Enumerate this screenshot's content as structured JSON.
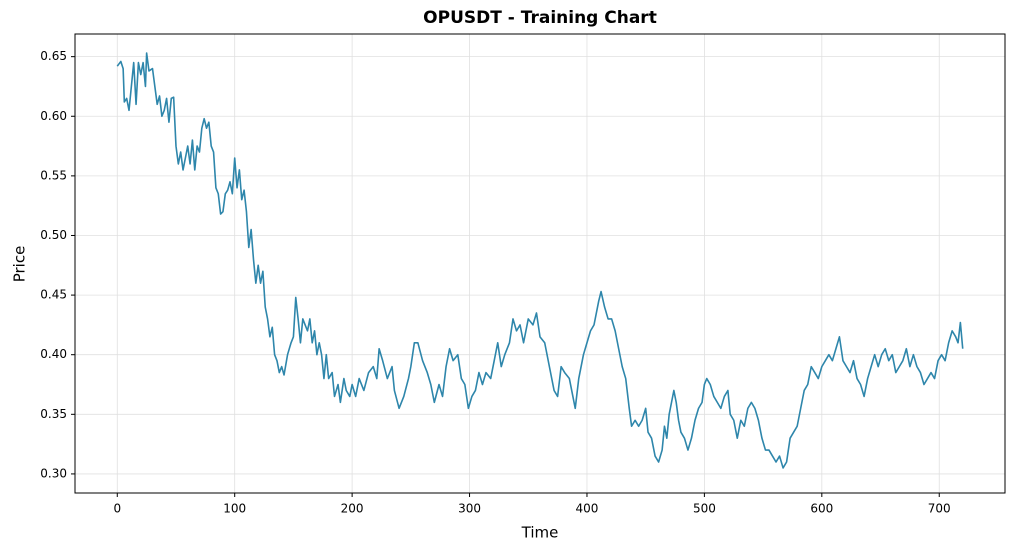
{
  "chart_data": {
    "type": "line",
    "title": "OPUSDT - Training Chart",
    "x_label": "Time",
    "y_label": "Price",
    "color": "#2e86ab",
    "grid": true,
    "xlim": [
      -36,
      756
    ],
    "ylim": [
      0.284,
      0.669
    ],
    "xticks": [
      0,
      100,
      200,
      300,
      400,
      500,
      600,
      700
    ],
    "yticks": [
      {
        "value": 0.3,
        "label": "0.30"
      },
      0.35,
      {
        "value": 0.4,
        "label": "0.40"
      },
      0.45,
      {
        "value": 0.5,
        "label": "0.50"
      },
      0.55,
      {
        "value": 0.6,
        "label": "0.60"
      },
      0.65
    ],
    "x": [
      0,
      3,
      5,
      6,
      8,
      10,
      12,
      14,
      16,
      18,
      20,
      22,
      24,
      25,
      27,
      30,
      32,
      34,
      36,
      38,
      40,
      42,
      44,
      46,
      48,
      50,
      52,
      54,
      56,
      58,
      60,
      62,
      64,
      66,
      68,
      70,
      72,
      74,
      76,
      78,
      80,
      82,
      84,
      86,
      88,
      90,
      92,
      94,
      96,
      98,
      100,
      102,
      104,
      106,
      108,
      110,
      112,
      114,
      116,
      118,
      120,
      122,
      124,
      126,
      128,
      130,
      132,
      134,
      136,
      138,
      140,
      142,
      145,
      148,
      150,
      152,
      154,
      156,
      158,
      160,
      162,
      164,
      166,
      168,
      170,
      172,
      174,
      176,
      178,
      180,
      183,
      185,
      188,
      190,
      193,
      195,
      198,
      200,
      203,
      206,
      210,
      214,
      218,
      221,
      223,
      226,
      230,
      234,
      236,
      240,
      244,
      248,
      250,
      253,
      256,
      260,
      264,
      267,
      270,
      274,
      277,
      280,
      283,
      286,
      290,
      293,
      296,
      299,
      302,
      305,
      308,
      311,
      314,
      318,
      321,
      324,
      327,
      330,
      334,
      337,
      340,
      343,
      346,
      350,
      354,
      357,
      360,
      364,
      368,
      372,
      375,
      378,
      381,
      385,
      388,
      390,
      393,
      397,
      400,
      403,
      406,
      410,
      412,
      415,
      418,
      421,
      424,
      427,
      430,
      433,
      436,
      438,
      441,
      444,
      447,
      450,
      452,
      455,
      458,
      461,
      464,
      466,
      468,
      470,
      472,
      474,
      476,
      478,
      480,
      483,
      486,
      489,
      492,
      495,
      498,
      500,
      502,
      505,
      508,
      511,
      514,
      517,
      520,
      522,
      525,
      528,
      531,
      534,
      537,
      540,
      543,
      546,
      549,
      552,
      555,
      558,
      561,
      564,
      567,
      570,
      573,
      576,
      579,
      582,
      585,
      588,
      591,
      594,
      597,
      600,
      603,
      606,
      609,
      612,
      615,
      618,
      621,
      624,
      627,
      630,
      633,
      636,
      639,
      642,
      645,
      648,
      651,
      654,
      657,
      660,
      663,
      666,
      669,
      672,
      675,
      678,
      681,
      684,
      687,
      690,
      693,
      696,
      699,
      702,
      705,
      708,
      711,
      714,
      716,
      718,
      720
    ],
    "values": [
      0.642,
      0.646,
      0.64,
      0.612,
      0.615,
      0.605,
      0.625,
      0.645,
      0.61,
      0.645,
      0.635,
      0.645,
      0.625,
      0.653,
      0.638,
      0.64,
      0.625,
      0.61,
      0.617,
      0.6,
      0.605,
      0.615,
      0.595,
      0.615,
      0.616,
      0.575,
      0.56,
      0.57,
      0.555,
      0.565,
      0.575,
      0.56,
      0.58,
      0.555,
      0.575,
      0.57,
      0.59,
      0.598,
      0.59,
      0.595,
      0.575,
      0.57,
      0.54,
      0.535,
      0.518,
      0.52,
      0.535,
      0.538,
      0.545,
      0.535,
      0.565,
      0.54,
      0.555,
      0.53,
      0.538,
      0.52,
      0.49,
      0.505,
      0.48,
      0.46,
      0.475,
      0.46,
      0.47,
      0.44,
      0.43,
      0.415,
      0.423,
      0.4,
      0.395,
      0.385,
      0.39,
      0.383,
      0.4,
      0.41,
      0.415,
      0.448,
      0.43,
      0.41,
      0.43,
      0.425,
      0.42,
      0.43,
      0.41,
      0.42,
      0.4,
      0.41,
      0.4,
      0.38,
      0.4,
      0.38,
      0.385,
      0.365,
      0.375,
      0.36,
      0.38,
      0.37,
      0.365,
      0.375,
      0.365,
      0.38,
      0.37,
      0.385,
      0.39,
      0.38,
      0.405,
      0.395,
      0.38,
      0.39,
      0.37,
      0.355,
      0.365,
      0.38,
      0.39,
      0.41,
      0.41,
      0.395,
      0.385,
      0.375,
      0.36,
      0.375,
      0.365,
      0.39,
      0.405,
      0.395,
      0.4,
      0.38,
      0.375,
      0.355,
      0.365,
      0.37,
      0.385,
      0.375,
      0.385,
      0.38,
      0.395,
      0.41,
      0.39,
      0.4,
      0.41,
      0.43,
      0.42,
      0.425,
      0.41,
      0.43,
      0.425,
      0.435,
      0.415,
      0.41,
      0.39,
      0.37,
      0.365,
      0.39,
      0.385,
      0.38,
      0.365,
      0.355,
      0.38,
      0.4,
      0.41,
      0.42,
      0.425,
      0.445,
      0.453,
      0.44,
      0.43,
      0.43,
      0.42,
      0.405,
      0.39,
      0.38,
      0.355,
      0.34,
      0.345,
      0.34,
      0.345,
      0.355,
      0.335,
      0.33,
      0.315,
      0.31,
      0.32,
      0.34,
      0.33,
      0.35,
      0.36,
      0.37,
      0.36,
      0.345,
      0.335,
      0.33,
      0.32,
      0.33,
      0.345,
      0.355,
      0.36,
      0.375,
      0.38,
      0.375,
      0.365,
      0.36,
      0.355,
      0.365,
      0.37,
      0.35,
      0.345,
      0.33,
      0.345,
      0.34,
      0.355,
      0.36,
      0.355,
      0.345,
      0.33,
      0.32,
      0.32,
      0.315,
      0.31,
      0.315,
      0.305,
      0.31,
      0.33,
      0.335,
      0.34,
      0.355,
      0.37,
      0.375,
      0.39,
      0.385,
      0.38,
      0.39,
      0.395,
      0.4,
      0.395,
      0.405,
      0.415,
      0.395,
      0.39,
      0.385,
      0.395,
      0.38,
      0.375,
      0.365,
      0.38,
      0.39,
      0.4,
      0.39,
      0.4,
      0.405,
      0.395,
      0.4,
      0.385,
      0.39,
      0.395,
      0.405,
      0.39,
      0.4,
      0.39,
      0.385,
      0.375,
      0.38,
      0.385,
      0.38,
      0.395,
      0.4,
      0.395,
      0.41,
      0.42,
      0.415,
      0.41,
      0.427,
      0.405
    ]
  }
}
